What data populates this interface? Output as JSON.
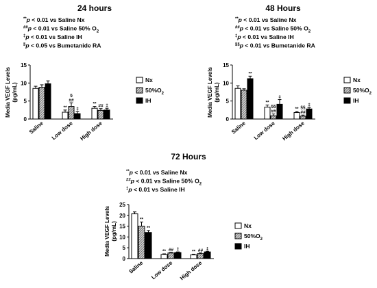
{
  "colors": {
    "nx": "#ffffff",
    "fifty_o2": "#8c8c8c",
    "ih": "#000000",
    "axis": "#000000"
  },
  "chart_data": [
    {
      "type": "bar",
      "title": "24 hours",
      "notes": [
        "**p < 0.01 vs Saline Nx",
        "##p < 0.01 vs Saline 50% O2",
        "‡p < 0.01 vs Saline IH",
        "§p < 0.05 vs Bumetanide RA"
      ],
      "ylabel": "Media VEGF Levels (pg/mL)",
      "ylim": [
        0,
        15
      ],
      "yticks": [
        0,
        5,
        10,
        15
      ],
      "categories": [
        "Saline",
        "Low dose",
        "High dose"
      ],
      "series": [
        {
          "name": "Nx",
          "pattern": "white",
          "values": [
            8.5,
            1.9,
            3.0
          ],
          "errors": [
            0.6,
            0.6,
            0.5
          ],
          "sig": [
            "",
            "**",
            "**"
          ]
        },
        {
          "name": "50%O₂",
          "pattern": "hatched",
          "values": [
            8.8,
            3.5,
            2.4
          ],
          "errors": [
            0.7,
            1.0,
            0.5
          ],
          "sig": [
            "",
            "§\n##",
            "##"
          ]
        },
        {
          "name": "IH",
          "pattern": "black",
          "values": [
            9.8,
            1.5,
            2.5
          ],
          "errors": [
            0.8,
            0.6,
            0.5
          ],
          "sig": [
            "",
            "‡",
            "‡"
          ]
        }
      ],
      "legend": "right"
    },
    {
      "type": "bar",
      "title": "48 Hours",
      "notes": [
        "**p < 0.01 vs Saline Nx",
        "##p < 0.01 vs Saline 50% O2",
        "‡p < 0.01 vs Saline IH",
        "§§p < 0.01 vs Bumetanide RA"
      ],
      "ylabel": "Media VEGF Levels (pg/mL)",
      "ylim": [
        0,
        15
      ],
      "yticks": [
        0,
        5,
        10,
        15
      ],
      "categories": [
        "Saline",
        "Low dose",
        "High dose"
      ],
      "series": [
        {
          "name": "Nx",
          "pattern": "white",
          "values": [
            8.5,
            3.3,
            1.8
          ],
          "errors": [
            0.7,
            0.6,
            0.3
          ],
          "sig": [
            "",
            "**",
            "**"
          ]
        },
        {
          "name": "50%O₂",
          "pattern": "hatched",
          "values": [
            8.0,
            0.9,
            0.8
          ],
          "errors": [
            0.4,
            0.5,
            0.3
          ],
          "sig": [
            "",
            "§§\n##",
            "§§\n##"
          ]
        },
        {
          "name": "IH",
          "pattern": "black",
          "values": [
            11.2,
            4.1,
            2.8
          ],
          "errors": [
            0.7,
            1.3,
            0.4
          ],
          "sig": [
            "**",
            "‡",
            "‡"
          ]
        }
      ],
      "legend": "right"
    },
    {
      "type": "bar",
      "title": "72 Hours",
      "notes": [
        "**p < 0.01 vs Saline Nx",
        "##p < 0.01 vs Saline 50% O2",
        "‡p < 0.01 vs Saline IH"
      ],
      "ylabel": "Media VEGF Levels (pg/mL)",
      "ylim": [
        0,
        25
      ],
      "yticks": [
        0,
        5,
        10,
        15,
        20,
        25
      ],
      "categories": [
        "Saline",
        "Low dose",
        "High dose"
      ],
      "series": [
        {
          "name": "Nx",
          "pattern": "white",
          "values": [
            20.7,
            1.9,
            1.7
          ],
          "errors": [
            0.9,
            0.3,
            0.3
          ],
          "sig": [
            "",
            "**",
            "**"
          ]
        },
        {
          "name": "50%O₂",
          "pattern": "hatched",
          "values": [
            15.0,
            2.6,
            2.3
          ],
          "errors": [
            1.9,
            0.3,
            0.3
          ],
          "sig": [
            "**",
            "##",
            "##"
          ]
        },
        {
          "name": "IH",
          "pattern": "black",
          "values": [
            12.1,
            2.8,
            3.1
          ],
          "errors": [
            0.9,
            0.3,
            0.3
          ],
          "sig": [
            "**",
            "‡",
            "‡"
          ]
        }
      ],
      "legend": "right"
    }
  ]
}
